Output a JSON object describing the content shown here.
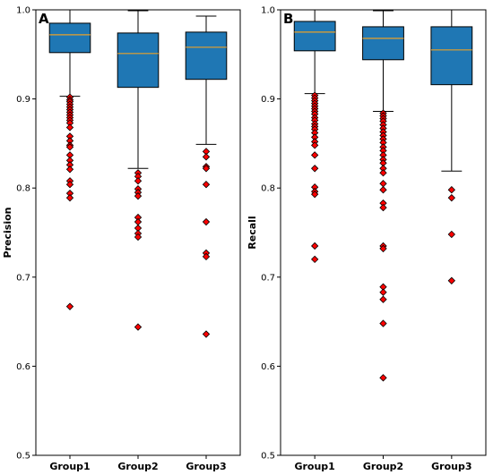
{
  "colors": {
    "box": "#1f77b4",
    "median": "#e8a02a",
    "flier": "#ff0000"
  },
  "chart_data": [
    {
      "type": "box",
      "panel_label": "A",
      "ylabel": "Precision",
      "xlabel": "",
      "ylim": [
        0.5,
        1.0
      ],
      "yticks": [
        "0.5",
        "0.6",
        "0.7",
        "0.8",
        "0.9",
        "1.0"
      ],
      "categories": [
        "Group1",
        "Group2",
        "Group3"
      ],
      "boxes": [
        {
          "name": "Group1",
          "whisker_low": 0.903,
          "q1": 0.952,
          "median": 0.972,
          "q3": 0.985,
          "whisker_high": 1.0,
          "outliers": [
            0.902,
            0.899,
            0.897,
            0.894,
            0.891,
            0.888,
            0.885,
            0.882,
            0.879,
            0.876,
            0.873,
            0.868,
            0.858,
            0.853,
            0.848,
            0.846,
            0.837,
            0.831,
            0.826,
            0.821,
            0.808,
            0.804,
            0.794,
            0.789,
            0.667
          ]
        },
        {
          "name": "Group2",
          "whisker_low": 0.822,
          "q1": 0.913,
          "median": 0.951,
          "q3": 0.974,
          "whisker_high": 0.999,
          "outliers": [
            0.817,
            0.813,
            0.808,
            0.799,
            0.795,
            0.791,
            0.767,
            0.762,
            0.755,
            0.749,
            0.745,
            0.644
          ]
        },
        {
          "name": "Group3",
          "whisker_low": 0.849,
          "q1": 0.922,
          "median": 0.958,
          "q3": 0.975,
          "whisker_high": 0.993,
          "outliers": [
            0.841,
            0.835,
            0.824,
            0.822,
            0.804,
            0.762,
            0.727,
            0.723,
            0.636
          ]
        }
      ]
    },
    {
      "type": "box",
      "panel_label": "B",
      "ylabel": "Recall",
      "xlabel": "",
      "ylim": [
        0.5,
        1.0
      ],
      "yticks": [
        "0.5",
        "0.6",
        "0.7",
        "0.8",
        "0.9",
        "1.0"
      ],
      "categories": [
        "Group1",
        "Group2",
        "Group3"
      ],
      "boxes": [
        {
          "name": "Group1",
          "whisker_low": 0.906,
          "q1": 0.954,
          "median": 0.975,
          "q3": 0.987,
          "whisker_high": 1.0,
          "outliers": [
            0.904,
            0.901,
            0.898,
            0.895,
            0.892,
            0.889,
            0.886,
            0.883,
            0.879,
            0.876,
            0.872,
            0.869,
            0.866,
            0.862,
            0.857,
            0.852,
            0.848,
            0.837,
            0.822,
            0.801,
            0.796,
            0.793,
            0.735,
            0.72
          ]
        },
        {
          "name": "Group2",
          "whisker_low": 0.886,
          "q1": 0.944,
          "median": 0.968,
          "q3": 0.981,
          "whisker_high": 0.999,
          "outliers": [
            0.884,
            0.881,
            0.878,
            0.875,
            0.871,
            0.867,
            0.863,
            0.859,
            0.855,
            0.851,
            0.846,
            0.842,
            0.837,
            0.832,
            0.828,
            0.822,
            0.817,
            0.805,
            0.798,
            0.783,
            0.778,
            0.735,
            0.732,
            0.689,
            0.683,
            0.675,
            0.648,
            0.587
          ]
        },
        {
          "name": "Group3",
          "whisker_low": 0.819,
          "q1": 0.916,
          "median": 0.955,
          "q3": 0.981,
          "whisker_high": 1.0,
          "outliers": [
            0.798,
            0.789,
            0.748,
            0.696
          ]
        }
      ]
    }
  ]
}
